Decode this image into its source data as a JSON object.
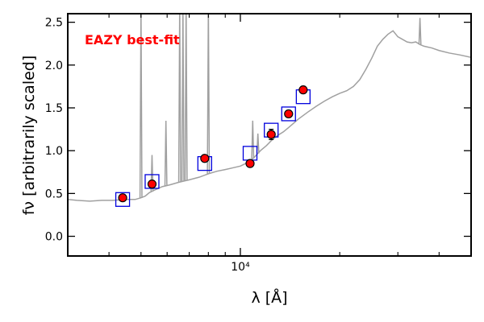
{
  "chart_data": {
    "type": "scatter",
    "annotation": "EAZY best-fit",
    "annotation_color": "#ff0000",
    "xlabel": "λ [Å]",
    "ylabel": "fν [arbitrarily scaled]",
    "x_scale": "log",
    "xlim": [
      3000,
      50000
    ],
    "ylim": [
      -0.23,
      2.6
    ],
    "x_tick_labels": [
      {
        "value": 10000,
        "label": "10⁴"
      }
    ],
    "y_ticks": [
      0.0,
      0.5,
      1.0,
      1.5,
      2.0,
      2.5
    ],
    "y_tick_labels": [
      "0.0",
      "0.5",
      "1.0",
      "1.5",
      "2.0",
      "2.5"
    ],
    "grid": false,
    "colors": {
      "model": "#a0a0a0",
      "observed_fill": "#ff0000",
      "observed_edge": "#000000",
      "model_box": "#0000dd"
    },
    "model_sed": [
      [
        3000,
        0.43
      ],
      [
        3200,
        0.42
      ],
      [
        3500,
        0.41
      ],
      [
        3800,
        0.42
      ],
      [
        4100,
        0.42
      ],
      [
        4500,
        0.43
      ],
      [
        4800,
        0.43
      ],
      [
        5000,
        0.45
      ],
      [
        5150,
        0.47
      ],
      [
        5300,
        0.51
      ],
      [
        5500,
        0.54
      ],
      [
        5800,
        0.58
      ],
      [
        6100,
        0.6
      ],
      [
        6500,
        0.63
      ],
      [
        7000,
        0.66
      ],
      [
        7500,
        0.69
      ],
      [
        8000,
        0.73
      ],
      [
        8500,
        0.76
      ],
      [
        9000,
        0.78
      ],
      [
        9500,
        0.8
      ],
      [
        10000,
        0.82
      ],
      [
        10500,
        0.86
      ],
      [
        11000,
        0.92
      ],
      [
        11500,
        1.0
      ],
      [
        12000,
        1.06
      ],
      [
        12500,
        1.13
      ],
      [
        13000,
        1.18
      ],
      [
        13500,
        1.22
      ],
      [
        14000,
        1.27
      ],
      [
        15000,
        1.37
      ],
      [
        16000,
        1.45
      ],
      [
        17000,
        1.52
      ],
      [
        18000,
        1.58
      ],
      [
        19000,
        1.63
      ],
      [
        20000,
        1.67
      ],
      [
        21000,
        1.7
      ],
      [
        22000,
        1.75
      ],
      [
        23000,
        1.83
      ],
      [
        24000,
        1.95
      ],
      [
        25000,
        2.08
      ],
      [
        26000,
        2.22
      ],
      [
        27000,
        2.3
      ],
      [
        28000,
        2.36
      ],
      [
        29000,
        2.4
      ],
      [
        30000,
        2.33
      ],
      [
        31000,
        2.3
      ],
      [
        32000,
        2.27
      ],
      [
        33000,
        2.26
      ],
      [
        34000,
        2.27
      ],
      [
        35000,
        2.24
      ],
      [
        36000,
        2.22
      ],
      [
        37000,
        2.21
      ],
      [
        38000,
        2.2
      ],
      [
        40000,
        2.17
      ],
      [
        43000,
        2.14
      ],
      [
        46000,
        2.12
      ],
      [
        50000,
        2.09
      ]
    ],
    "emission_lines": [
      {
        "x": 5000,
        "peak": 2.7
      },
      {
        "x": 5400,
        "peak": 0.95
      },
      {
        "x": 5950,
        "peak": 1.35
      },
      {
        "x": 6550,
        "peak": 2.7
      },
      {
        "x": 6700,
        "peak": 2.7
      },
      {
        "x": 6850,
        "peak": 2.7
      },
      {
        "x": 8000,
        "peak": 2.7
      },
      {
        "x": 10900,
        "peak": 1.35
      },
      {
        "x": 11300,
        "peak": 1.2
      },
      {
        "x": 35000,
        "peak": 2.55
      }
    ],
    "observed_points": [
      {
        "x": 4400,
        "y": 0.45,
        "err": 0.02
      },
      {
        "x": 5400,
        "y": 0.61,
        "err": 0.02
      },
      {
        "x": 7800,
        "y": 0.91,
        "err": 0.02
      },
      {
        "x": 10700,
        "y": 0.85,
        "err": 0.02
      },
      {
        "x": 12400,
        "y": 1.19,
        "err": 0.06
      },
      {
        "x": 14000,
        "y": 1.43,
        "err": 0.04
      },
      {
        "x": 15500,
        "y": 1.71,
        "err": 0.03
      }
    ],
    "model_photometry": [
      {
        "x": 4400,
        "y": 0.43
      },
      {
        "x": 5400,
        "y": 0.64
      },
      {
        "x": 7800,
        "y": 0.85
      },
      {
        "x": 10700,
        "y": 0.97
      },
      {
        "x": 12400,
        "y": 1.24
      },
      {
        "x": 14000,
        "y": 1.43
      },
      {
        "x": 15500,
        "y": 1.63
      }
    ]
  }
}
